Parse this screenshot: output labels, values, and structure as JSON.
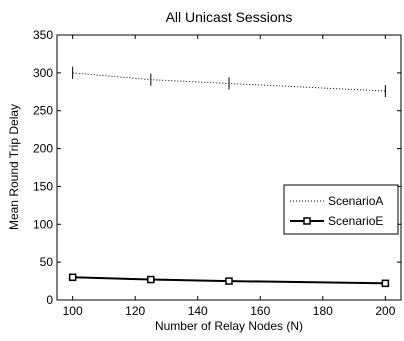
{
  "chart_data": {
    "type": "line",
    "title": "All Unicast Sessions",
    "xlabel": "Number of Relay Nodes (N)",
    "ylabel": "Mean Round Trip Delay",
    "xlim": [
      95,
      205
    ],
    "ylim": [
      0,
      350
    ],
    "xticks": [
      100,
      120,
      140,
      160,
      180,
      200
    ],
    "yticks": [
      0,
      50,
      100,
      150,
      200,
      250,
      300,
      350
    ],
    "x": [
      100,
      125,
      150,
      200
    ],
    "grid": false,
    "legend_position": "right",
    "series": [
      {
        "name": "ScenarioA",
        "values": [
          300,
          291,
          286,
          276
        ],
        "errors": [
          8,
          8,
          8,
          8
        ],
        "line_style": "dotted",
        "marker": "none",
        "color": "#000000"
      },
      {
        "name": "ScenarioE",
        "values": [
          30,
          27,
          25,
          22
        ],
        "line_style": "solid",
        "marker": "square",
        "color": "#000000"
      }
    ]
  }
}
